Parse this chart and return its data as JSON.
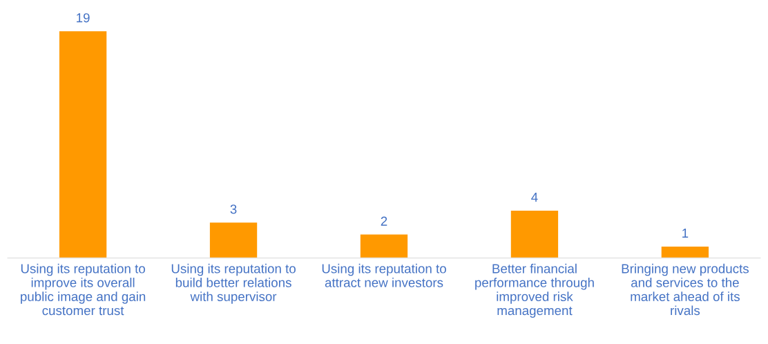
{
  "chart_data": {
    "type": "bar",
    "categories": [
      "Using its reputation to\nimprove its overall\npublic image and gain\ncustomer trust",
      "Using its reputation to\nbuild better relations\nwith supervisor",
      "Using its reputation to\nattract new investors",
      "Better financial\nperformance through\nimproved risk\nmanagement",
      "Bringing new products\nand services to the\nmarket ahead of its\nrivals"
    ],
    "values": [
      19,
      3,
      2,
      4,
      1
    ],
    "color": "#ff9900",
    "tick_labels": "x",
    "data_labels": true,
    "grid": false,
    "legend": false
  }
}
